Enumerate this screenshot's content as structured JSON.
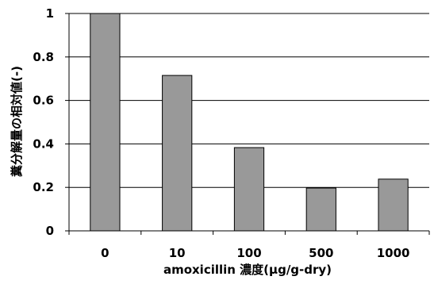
{
  "chart_data": {
    "type": "bar",
    "categories": [
      "0",
      "10",
      "100",
      "500",
      "1000"
    ],
    "values": [
      1.0,
      0.715,
      0.383,
      0.197,
      0.238
    ],
    "xlabel": "amoxicillin 濃度(μg/g-dry)",
    "ylabel": "糞分解量の相対値(-)",
    "ylim": [
      0,
      1
    ],
    "yticks": [
      "0",
      "0.2",
      "0.4",
      "0.6",
      "0.8",
      "1"
    ],
    "grid": true,
    "bar_color": "#999999",
    "bar_edge_color": "#000000"
  }
}
